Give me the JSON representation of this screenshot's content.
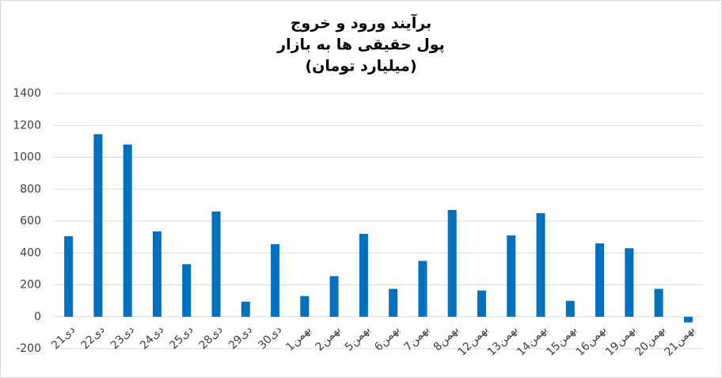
{
  "chart_data": {
    "type": "bar",
    "title": [
      "برآیند ورود و خروج",
      "پول حقیقی ها به بازار",
      "(میلیارد تومان)"
    ],
    "categories": [
      "21دی",
      "22دی",
      "23دی",
      "24دی",
      "25دی",
      "28دی",
      "29دی",
      "30دی",
      "1بهمن",
      "2بهمن",
      "5بهمن",
      "6بهمن",
      "7بهمن",
      "8بهمن",
      "12بهمن",
      "13بهمن",
      "14بهمن",
      "15بهمن",
      "16بهمن",
      "19بهمن",
      "20بهمن",
      "21بهمن"
    ],
    "values": [
      505,
      1145,
      1080,
      535,
      330,
      660,
      95,
      455,
      130,
      255,
      520,
      175,
      350,
      670,
      165,
      510,
      650,
      100,
      460,
      430,
      175,
      -35
    ],
    "color": "#0070c0",
    "ylim": [
      -200,
      1400
    ],
    "yticks": [
      -200,
      0,
      200,
      400,
      600,
      800,
      1000,
      1200,
      1400
    ],
    "grid": true
  }
}
